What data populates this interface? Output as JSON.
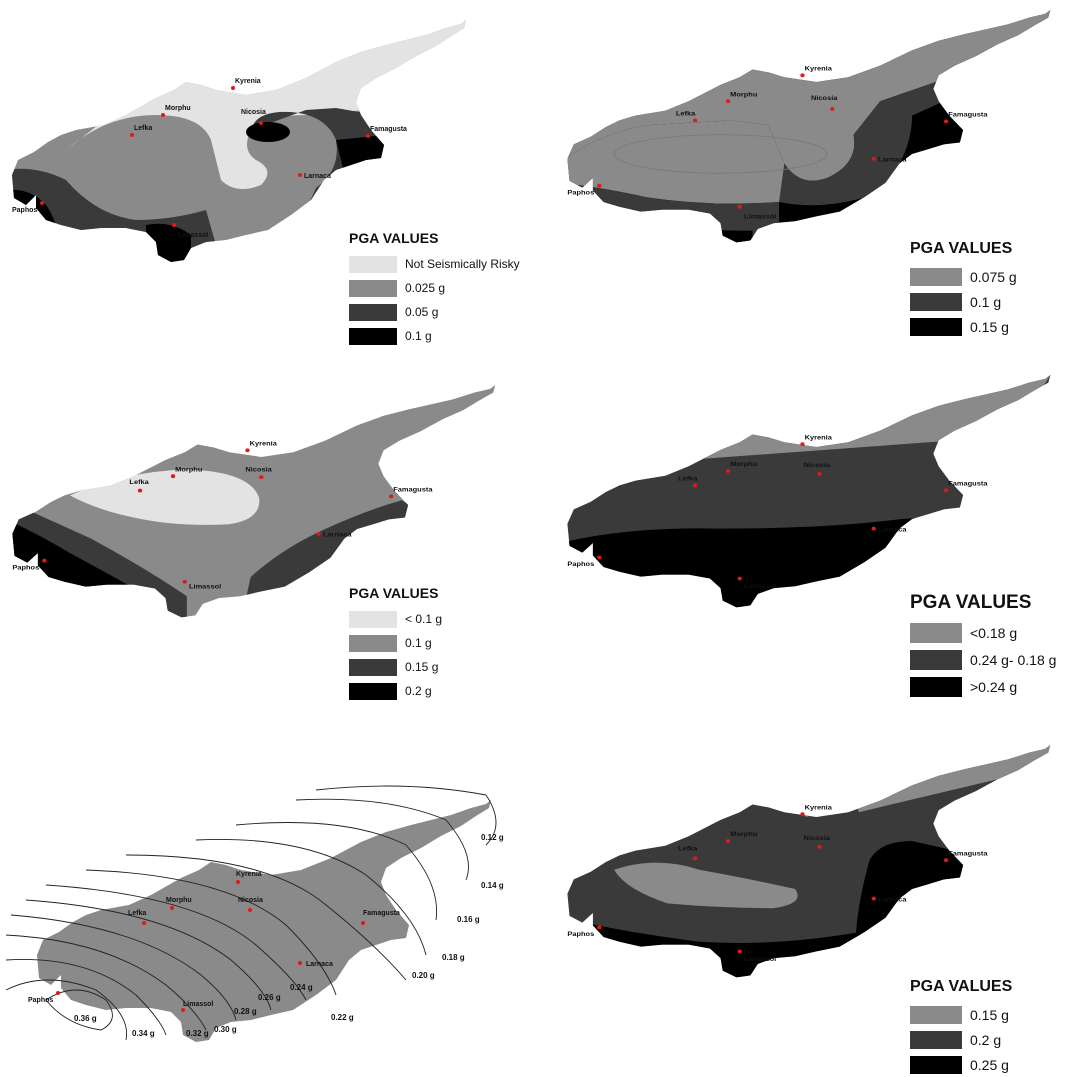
{
  "colors": {
    "light": "#e3e3e3",
    "medium": "#8a8a8a",
    "dark": "#3a3a3a",
    "black": "#000000",
    "city_dot": "#e01a1a",
    "isoline": "#222222"
  },
  "cities": [
    "Kyrenia",
    "Morphu",
    "Lefka",
    "Nicosia",
    "Famagusta",
    "Larnaca",
    "Paphos",
    "Limassol"
  ],
  "panels": [
    {
      "legend_title": "PGA VALUES",
      "legend": [
        {
          "label": "Not Seismically Risky",
          "color": "#e3e3e3"
        },
        {
          "label": "0.025 g",
          "color": "#8a8a8a"
        },
        {
          "label": "0.05 g",
          "color": "#3a3a3a"
        },
        {
          "label": "0.1 g",
          "color": "#000000"
        }
      ]
    },
    {
      "legend_title": "PGA VALUES",
      "legend": [
        {
          "label": "0.075 g",
          "color": "#8a8a8a"
        },
        {
          "label": "0.1 g",
          "color": "#3a3a3a"
        },
        {
          "label": "0.15 g",
          "color": "#000000"
        }
      ]
    },
    {
      "legend_title": "PGA VALUES",
      "legend": [
        {
          "label": "< 0.1 g",
          "color": "#e3e3e3"
        },
        {
          "label": "0.1 g",
          "color": "#8a8a8a"
        },
        {
          "label": "0.15 g",
          "color": "#3a3a3a"
        },
        {
          "label": "0.2 g",
          "color": "#000000"
        }
      ]
    },
    {
      "legend_title": "PGA VALUES",
      "legend": [
        {
          "label": "<0.18 g",
          "color": "#8a8a8a"
        },
        {
          "label": "0.24 g- 0.18 g",
          "color": "#3a3a3a"
        },
        {
          "label": ">0.24 g",
          "color": "#000000"
        }
      ]
    },
    {
      "isolines": [
        "0.12 g",
        "0.14 g",
        "0.16 g",
        "0.18 g",
        "0.20 g",
        "0.22 g",
        "0.24 g",
        "0.26 g",
        "0.28 g",
        "0.30 g",
        "0.32 g",
        "0.34 g",
        "0.36 g"
      ]
    },
    {
      "legend_title": "PGA VALUES",
      "legend": [
        {
          "label": "0.15 g",
          "color": "#8a8a8a"
        },
        {
          "label": "0.2 g",
          "color": "#3a3a3a"
        },
        {
          "label": "0.25 g",
          "color": "#000000"
        }
      ]
    }
  ]
}
